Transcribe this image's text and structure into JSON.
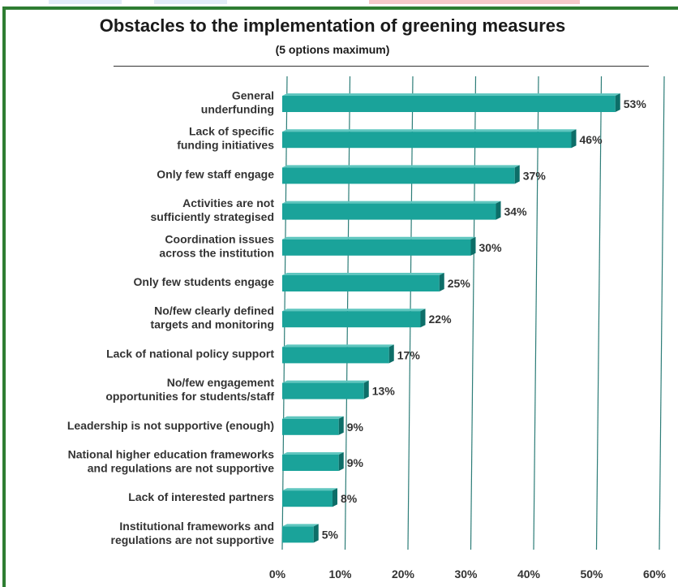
{
  "chart_data": {
    "type": "bar",
    "orientation": "horizontal",
    "title": "Obstacles to the implementation of greening measures",
    "subtitle": "(5 options maximum)",
    "categories": [
      [
        "General",
        "underfunding"
      ],
      [
        "Lack of specific",
        "funding initiatives"
      ],
      [
        "Only few staff engage"
      ],
      [
        "Activities are not",
        "sufficiently strategised"
      ],
      [
        "Coordination issues",
        "across the institution"
      ],
      [
        "Only few students engage"
      ],
      [
        "No/few clearly defined",
        "targets and monitoring"
      ],
      [
        "Lack of national policy support"
      ],
      [
        "No/few engagement",
        "opportunities for students/staff"
      ],
      [
        "Leadership is not supportive (enough)"
      ],
      [
        "National higher education frameworks",
        "and regulations are not supportive"
      ],
      [
        "Lack of interested partners"
      ],
      [
        "Institutional frameworks and",
        "regulations are not supportive"
      ]
    ],
    "values": [
      53,
      46,
      37,
      34,
      30,
      25,
      22,
      17,
      13,
      9,
      9,
      8,
      5
    ],
    "value_labels": [
      "53%",
      "46%",
      "37%",
      "34%",
      "30%",
      "25%",
      "22%",
      "17%",
      "13%",
      "9%",
      "9%",
      "8%",
      "5%"
    ],
    "xlim": [
      0,
      60
    ],
    "x_ticks": [
      0,
      10,
      20,
      30,
      40,
      50,
      60
    ],
    "x_tick_labels": [
      "0%",
      "10%",
      "20%",
      "30%",
      "40%",
      "50%",
      "60%"
    ],
    "grid": true,
    "bar_color": "#1aa39a",
    "bar_side_color": "#0d6e68",
    "bar_top_color": "#5fc6bf",
    "grid_color": "#2d7d78"
  },
  "frame": {
    "border_color": "#2e7d32"
  }
}
